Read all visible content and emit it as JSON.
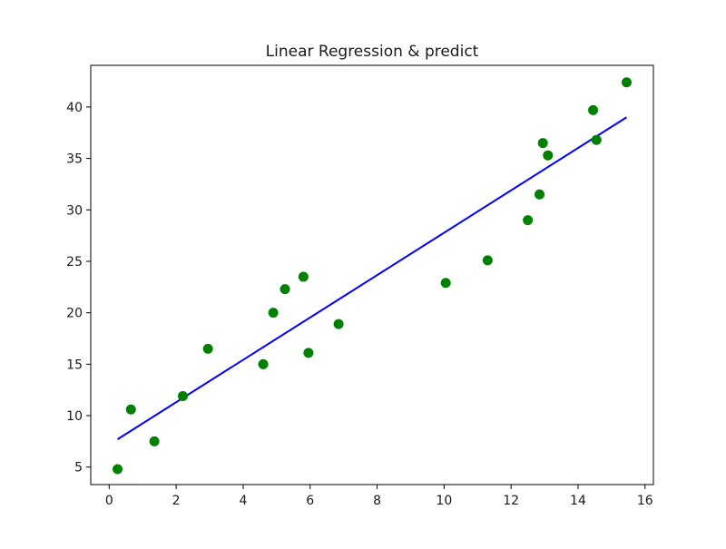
{
  "chart_data": {
    "type": "scatter",
    "title": "Linear Regression & predict",
    "xlabel": "",
    "ylabel": "",
    "xlim": [
      -0.55,
      16.25
    ],
    "ylim": [
      3.3,
      44.05
    ],
    "x_ticks": [
      0,
      2,
      4,
      6,
      8,
      10,
      12,
      14,
      16
    ],
    "y_ticks": [
      5,
      10,
      15,
      20,
      25,
      30,
      35,
      40
    ],
    "grid": false,
    "legend": "none",
    "series": [
      {
        "kind": "scatter",
        "color": "#008000",
        "points": [
          {
            "x": 0.25,
            "y": 4.8
          },
          {
            "x": 0.65,
            "y": 10.6
          },
          {
            "x": 1.35,
            "y": 7.5
          },
          {
            "x": 2.2,
            "y": 11.9
          },
          {
            "x": 2.95,
            "y": 16.5
          },
          {
            "x": 4.6,
            "y": 15.0
          },
          {
            "x": 4.9,
            "y": 20.0
          },
          {
            "x": 5.25,
            "y": 22.3
          },
          {
            "x": 5.8,
            "y": 23.5
          },
          {
            "x": 5.95,
            "y": 16.1
          },
          {
            "x": 6.85,
            "y": 18.9
          },
          {
            "x": 10.05,
            "y": 22.9
          },
          {
            "x": 11.3,
            "y": 25.1
          },
          {
            "x": 12.5,
            "y": 29.0
          },
          {
            "x": 12.85,
            "y": 31.5
          },
          {
            "x": 12.95,
            "y": 36.5
          },
          {
            "x": 13.1,
            "y": 35.3
          },
          {
            "x": 14.45,
            "y": 39.7
          },
          {
            "x": 14.55,
            "y": 36.8
          },
          {
            "x": 15.45,
            "y": 42.4
          }
        ]
      },
      {
        "kind": "line",
        "color": "#0000ff",
        "points": [
          {
            "x": 0.25,
            "y": 7.7
          },
          {
            "x": 15.45,
            "y": 39.0
          }
        ]
      }
    ]
  }
}
